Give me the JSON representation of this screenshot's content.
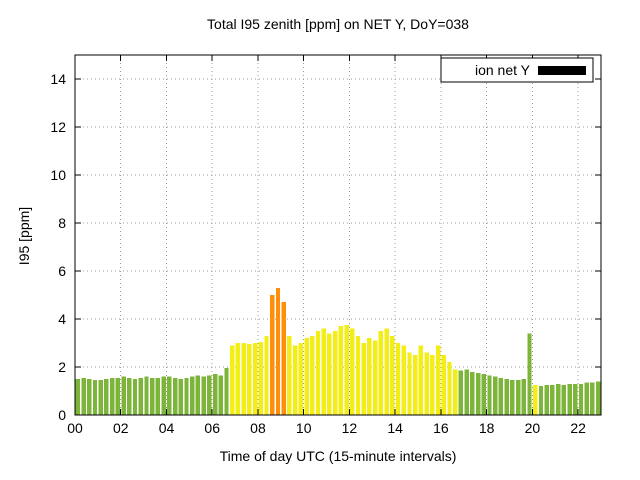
{
  "chart_data": {
    "type": "bar",
    "title": "Total I95 zenith [ppm] on NET Y, DoY=038",
    "xlabel": "Time of day UTC (15-minute intervals)",
    "ylabel": "I95 [ppm]",
    "xlim": [
      0,
      23
    ],
    "ylim": [
      0,
      15
    ],
    "xticks": [
      0,
      2,
      4,
      6,
      8,
      10,
      12,
      14,
      16,
      18,
      20,
      22
    ],
    "xtick_labels": [
      "00",
      "02",
      "04",
      "06",
      "08",
      "10",
      "12",
      "14",
      "16",
      "18",
      "20",
      "22"
    ],
    "yticks": [
      0,
      2,
      4,
      6,
      8,
      10,
      12,
      14
    ],
    "ytick_labels": [
      "0",
      "2",
      "4",
      "6",
      "8",
      "10",
      "12",
      "14"
    ],
    "legend": {
      "label": "ion net Y",
      "swatch_color": "#000000"
    },
    "grid": true,
    "start_time": "00:00",
    "interval_hours": 0.25,
    "color_map": {
      "g": "#7db43a",
      "y": "#f3ee16",
      "o": "#ff8e0a"
    },
    "bar_values": [
      1.5,
      1.55,
      1.5,
      1.45,
      1.45,
      1.5,
      1.55,
      1.55,
      1.6,
      1.55,
      1.5,
      1.55,
      1.6,
      1.55,
      1.55,
      1.6,
      1.6,
      1.55,
      1.5,
      1.55,
      1.6,
      1.65,
      1.6,
      1.65,
      1.7,
      1.65,
      1.95,
      2.9,
      3.0,
      3.0,
      2.95,
      3.0,
      3.05,
      3.3,
      5.0,
      5.3,
      4.7,
      3.3,
      2.9,
      3.0,
      3.2,
      3.3,
      3.5,
      3.6,
      3.4,
      3.5,
      3.7,
      3.75,
      3.6,
      3.3,
      3.0,
      3.2,
      3.1,
      3.5,
      3.6,
      3.3,
      3.0,
      2.9,
      2.6,
      2.5,
      2.9,
      2.6,
      2.5,
      2.9,
      2.5,
      2.2,
      1.9,
      1.85,
      1.9,
      1.8,
      1.75,
      1.7,
      1.65,
      1.6,
      1.55,
      1.5,
      1.45,
      1.45,
      1.5,
      3.4,
      1.25,
      1.2,
      1.25,
      1.25,
      1.3,
      1.25,
      1.3,
      1.3,
      1.3,
      1.35,
      1.35,
      1.4
    ],
    "bar_color_codes": "gggggggggggggggggggggggggggyyyyyyyoooyyyyyyyyyyyyyyyyyyyyyyyyyyyyyygggggggggggggygggggggggggg"
  }
}
